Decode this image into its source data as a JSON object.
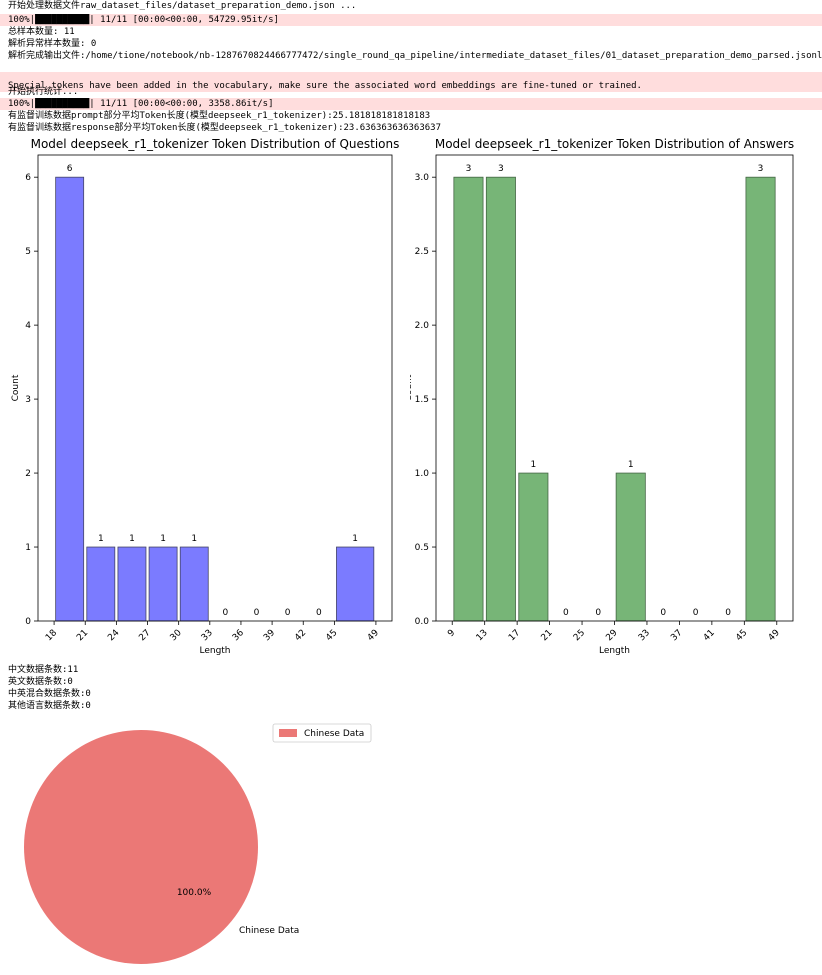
{
  "log": [
    {
      "text": "开始处理数据文件raw_dataset_files/dataset_preparation_demo.json ...",
      "stderr": false
    },
    {
      "text": "100%|██████████| 11/11 [00:00<00:00, 54729.95it/s]",
      "stderr": true
    },
    {
      "text": "总样本数量: 11",
      "stderr": false
    },
    {
      "text": "解析异常样本数量: 0",
      "stderr": false
    },
    {
      "text": "解析完成输出文件:/home/tione/notebook/nb-1287670824466777472/single_round_qa_pipeline/intermediate_dataset_files/01_dataset_preparation_demo_parsed.jsonl",
      "stderr": false
    },
    {
      "text": "Special tokens have been added in the vocabulary, make sure the associated word embeddings are fine-tuned or trained.",
      "stderr": true
    },
    {
      "text": "开始执行统计...",
      "stderr": false
    },
    {
      "text": "100%|██████████| 11/11 [00:00<00:00, 3358.86it/s]",
      "stderr": true
    },
    {
      "text": "有监督训练数据prompt部分平均Token长度(模型deepseek_r1_tokenizer):25.181818181818183",
      "stderr": false
    },
    {
      "text": "有监督训练数据response部分平均Token长度(模型deepseek_r1_tokenizer):23.636363636363637",
      "stderr": false
    }
  ],
  "stats": [
    "中文数据条数:11",
    "英文数据条数:0",
    "中英混合数据条数:0",
    "其他语言数据条数:0"
  ],
  "chart_data": [
    {
      "type": "bar",
      "title": "Model deepseek_r1_tokenizer Token Distribution of Questions",
      "xlabel": "Length",
      "ylabel": "Count",
      "bin_edges": [
        18,
        21,
        24,
        27,
        30,
        33,
        36,
        39,
        42,
        45,
        49
      ],
      "tick_labels": [
        "18",
        "21",
        "24",
        "27",
        "30",
        "33",
        "36",
        "39",
        "42",
        "45",
        "49"
      ],
      "values": [
        6,
        1,
        1,
        1,
        1,
        0,
        0,
        0,
        0,
        1
      ],
      "ylim": [
        0,
        6.3
      ],
      "yticks": [
        0,
        1,
        2,
        3,
        4,
        5,
        6
      ],
      "ytick_labels": [
        "0",
        "1",
        "2",
        "3",
        "4",
        "5",
        "6"
      ],
      "color": "#7b7bff",
      "edge_color": "#444466"
    },
    {
      "type": "bar",
      "title": "Model deepseek_r1_tokenizer Token Distribution of Answers",
      "xlabel": "Length",
      "ylabel": "Count",
      "bin_edges": [
        9,
        13,
        17,
        21,
        25,
        29,
        33,
        37,
        41,
        45,
        49
      ],
      "tick_labels": [
        "9",
        "13",
        "17",
        "21",
        "25",
        "29",
        "33",
        "37",
        "41",
        "45",
        "49"
      ],
      "values": [
        3,
        3,
        1,
        0,
        0,
        1,
        0,
        0,
        0,
        3
      ],
      "ylim": [
        0,
        3.15
      ],
      "yticks": [
        0,
        0.5,
        1.0,
        1.5,
        2.0,
        2.5,
        3.0
      ],
      "ytick_labels": [
        "0.0",
        "0.5",
        "1.0",
        "1.5",
        "2.0",
        "2.5",
        "3.0"
      ],
      "color": "#77b577",
      "edge_color": "#446644"
    },
    {
      "type": "pie",
      "labels": [
        "Chinese Data"
      ],
      "values": [
        100
      ],
      "pct_labels": [
        "100.0%"
      ],
      "legend": [
        "Chinese Data"
      ],
      "legend_position": "top-right",
      "colors": [
        "#eb7876"
      ]
    }
  ]
}
